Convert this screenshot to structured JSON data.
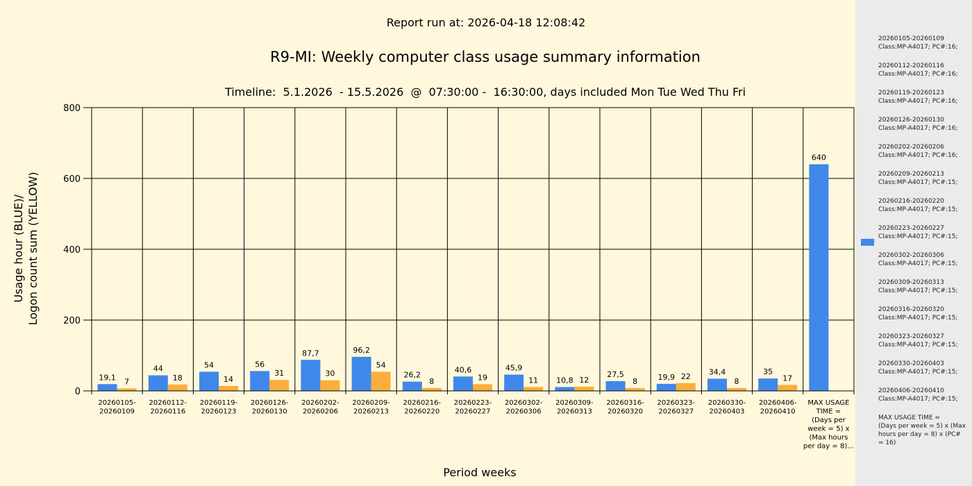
{
  "report_run": "Report run at: 2026-04-18 12:08:42",
  "chart_data": {
    "type": "bar",
    "title": "R9-MI: Weekly computer class usage summary information",
    "subtitle": "Timeline:  5.1.2026  - 15.5.2026  @  07:30:00 -  16:30:00, days included Mon Tue Wed Thu Fri",
    "xlabel": "Period weeks",
    "ylabel_line1": "Usage hour (BLUE)/",
    "ylabel_line2": "Logon count sum (YELLOW)",
    "ylim": [
      0,
      800
    ],
    "yticks": [
      0,
      200,
      400,
      600,
      800
    ],
    "grid": true,
    "legend_position": "right",
    "categories": [
      "20260105-\n20260109",
      "20260112-\n20260116",
      "20260119-\n20260123",
      "20260126-\n20260130",
      "20260202-\n20260206",
      "20260209-\n20260213",
      "20260216-\n20260220",
      "20260223-\n20260227",
      "20260302-\n20260306",
      "20260309-\n20260313",
      "20260316-\n20260320",
      "20260323-\n20260327",
      "20260330-\n20260403",
      "20260406-\n20260410",
      "MAX USAGE\nTIME =\n(Days per\nweek = 5) x\n(Max hours\nper day = 8)..."
    ],
    "series": [
      {
        "color": "#3f88ea",
        "values": [
          19.1,
          44,
          54,
          56,
          87.7,
          96.2,
          26.2,
          40.6,
          45.9,
          10.8,
          27.5,
          19.9,
          34.4,
          35,
          640
        ],
        "labels": [
          "19,1",
          "44",
          "54",
          "56",
          "87,7",
          "96,2",
          "26,2",
          "40,6",
          "45,9",
          "10,8",
          "27,5",
          "19,9",
          "34,4",
          "35",
          "640"
        ]
      },
      {
        "color": "#fbae3c",
        "values": [
          7,
          18,
          14,
          31,
          30,
          54,
          8,
          19,
          11,
          12,
          8,
          22,
          8,
          17,
          null
        ],
        "labels": [
          "7",
          "18",
          "14",
          "31",
          "30",
          "54",
          "8",
          "19",
          "11",
          "12",
          "8",
          "22",
          "8",
          "17",
          null
        ]
      }
    ]
  },
  "legend": {
    "swatch_color": "#3f88ea",
    "entries": [
      "20260105-20260109\nClass:MP-A4017; PC#:16;",
      "20260112-20260116\nClass:MP-A4017; PC#:16;",
      "20260119-20260123\nClass:MP-A4017; PC#:16;",
      "20260126-20260130\nClass:MP-A4017; PC#:16;",
      "20260202-20260206\nClass:MP-A4017; PC#:16;",
      "20260209-20260213\nClass:MP-A4017; PC#:15;",
      "20260216-20260220\nClass:MP-A4017; PC#:15;",
      "20260223-20260227\nClass:MP-A4017; PC#:15;",
      "20260302-20260306\nClass:MP-A4017; PC#:15;",
      "20260309-20260313\nClass:MP-A4017; PC#:15;",
      "20260316-20260320\nClass:MP-A4017; PC#:15;",
      "20260323-20260327\nClass:MP-A4017; PC#:15;",
      "20260330-20260403\nClass:MP-A4017; PC#:15;",
      "20260406-20260410\nClass:MP-A4017; PC#:15;",
      "MAX USAGE TIME =\n (Days per week = 5) x (Max\nhours per day = 8) x (PC#\n= 16)"
    ]
  }
}
